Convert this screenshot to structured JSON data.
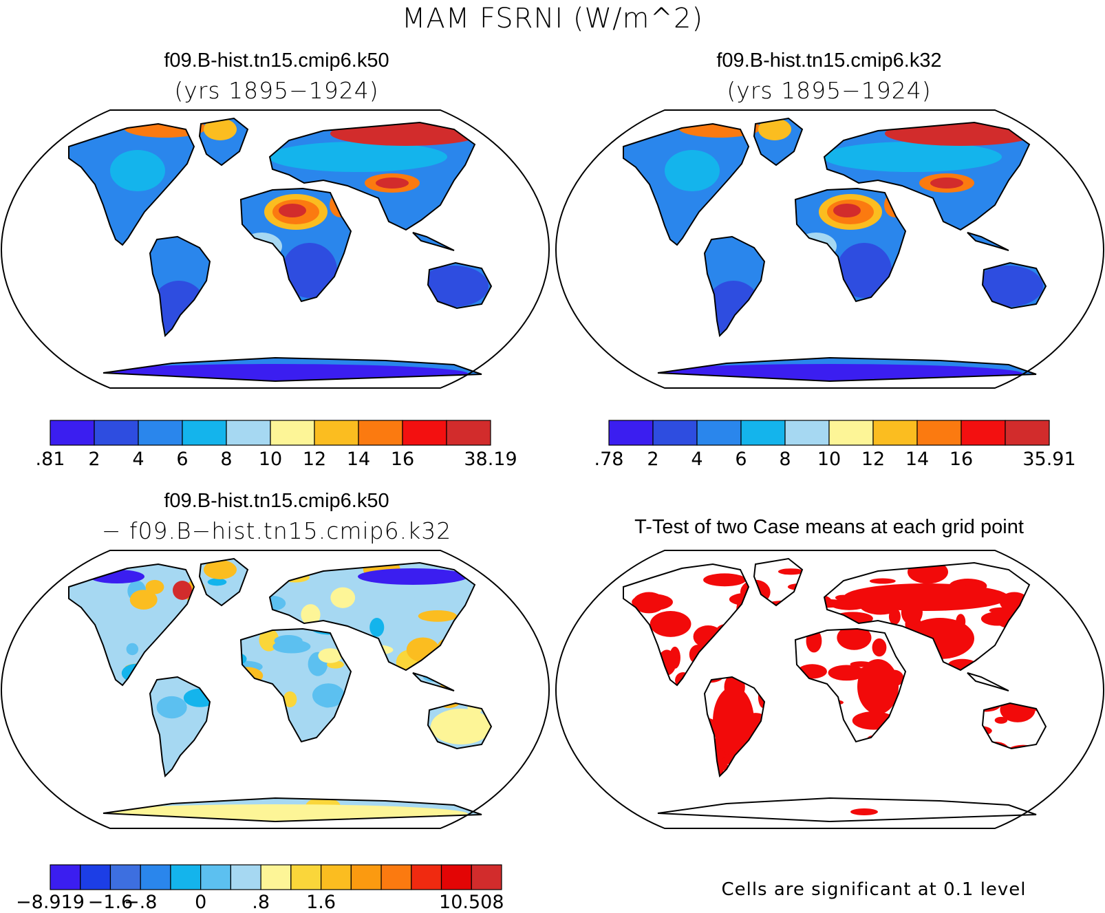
{
  "figure_title": "MAM FSRNI (W/m^2)",
  "panels": [
    {
      "title": "f09.B-hist.tn15.cmip6.k50",
      "subtitle": "(yrs 1895−1924)",
      "kind": "field"
    },
    {
      "title": "f09.B-hist.tn15.cmip6.k32",
      "subtitle": "(yrs 1895−1924)",
      "kind": "field"
    },
    {
      "title": "f09.B-hist.tn15.cmip6.k50",
      "subtitle": "− f09.B−hist.tn15.cmip6.k32",
      "kind": "difference"
    },
    {
      "title": "T-Test of two Case means at each grid point",
      "subtitle": "",
      "kind": "ttest",
      "note": "Cells are significant at 0.1 level"
    }
  ],
  "colorbars": [
    {
      "labels": [
        ".81",
        "2",
        "4",
        "6",
        "8",
        "10",
        "12",
        "14",
        "16",
        "",
        "38.19"
      ],
      "colors": [
        "#3b1ef0",
        "#2e4de0",
        "#2a86ec",
        "#14b4ec",
        "#a6d8f2",
        "#fdf597",
        "#fbbd20",
        "#fb7a10",
        "#f31010",
        "#d22c2c"
      ]
    },
    {
      "labels": [
        ".78",
        "2",
        "4",
        "6",
        "8",
        "10",
        "12",
        "14",
        "16",
        "",
        "35.91"
      ],
      "colors": [
        "#3b1ef0",
        "#2e4de0",
        "#2a86ec",
        "#14b4ec",
        "#a6d8f2",
        "#fdf597",
        "#fbbd20",
        "#fb7a10",
        "#f31010",
        "#d22c2c"
      ]
    },
    {
      "labels": [
        "−8.919",
        "",
        "−1.6",
        "−.8",
        "",
        "0",
        "",
        ".8",
        "",
        "1.6",
        "",
        "",
        "",
        "",
        "10.508"
      ],
      "colors": [
        "#3b1ef0",
        "#1c3ee6",
        "#3d6fe0",
        "#2a86ec",
        "#14b4ec",
        "#5cc0f0",
        "#a6d8f2",
        "#fdf597",
        "#fad63a",
        "#fbbd20",
        "#fb9a10",
        "#fb7a10",
        "#f02a10",
        "#e30505",
        "#d22c2c"
      ]
    }
  ],
  "colors": {
    "land_default": "#2a86ec",
    "significant": "#f20a0a",
    "coast": "#000000"
  }
}
